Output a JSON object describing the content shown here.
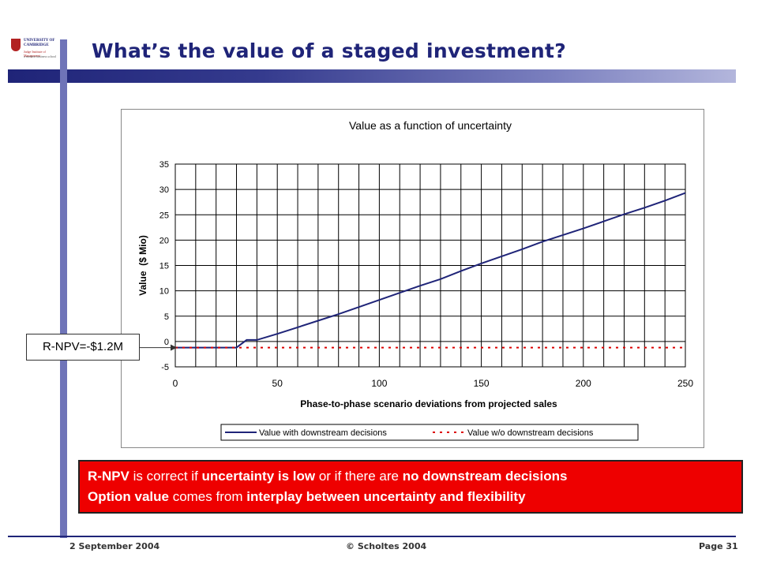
{
  "header": {
    "title": "What’s the value of a staged investment?",
    "logo": {
      "line1": "UNIVERSITY OF",
      "line2": "CAMBRIDGE",
      "line3": "Judge Institute of Management",
      "line4": "a modern business school"
    }
  },
  "callout": {
    "text": "R-NPV=-$1.2M"
  },
  "redbox": {
    "line1": {
      "a": "R-NPV",
      "b": " is correct if ",
      "c": "uncertainty is low",
      "d": " or if there are ",
      "e": "no downstream decisions"
    },
    "line2": {
      "a": "Option value",
      "b": " comes from ",
      "c": "interplay between uncertainty and flexibility"
    }
  },
  "footer": {
    "date": "2 September 2004",
    "copyright": "© Scholtes 2004",
    "page": "Page 31"
  },
  "colors": {
    "accent": "#1f2478",
    "red": "#ee0000",
    "series_with": "#1f2478",
    "series_without": "#dd0000"
  },
  "chart_data": {
    "type": "line",
    "title": "Value as a function of uncertainty",
    "xlabel": "Phase-to-phase scenario deviations from projected sales",
    "ylabel": "Value  ($ Mio)",
    "xlim": [
      0,
      250
    ],
    "ylim": [
      -5,
      35
    ],
    "xticks": [
      0,
      50,
      100,
      150,
      200,
      250
    ],
    "yticks": [
      -5,
      0,
      5,
      10,
      15,
      20,
      25,
      30,
      35
    ],
    "x_gridlines_every": 10,
    "grid": true,
    "legend_position": "bottom",
    "series": [
      {
        "name": "Value with downstream decisions",
        "style": "solid",
        "x": [
          0,
          30,
          35,
          40,
          50,
          60,
          70,
          80,
          90,
          100,
          110,
          120,
          130,
          140,
          150,
          160,
          170,
          180,
          190,
          200,
          210,
          220,
          230,
          240,
          250
        ],
        "y": [
          -1.2,
          -1.2,
          0.3,
          0.3,
          1.5,
          2.8,
          4.1,
          5.4,
          6.8,
          8.2,
          9.6,
          11.0,
          12.3,
          13.9,
          15.4,
          16.8,
          18.2,
          19.7,
          21.0,
          22.3,
          23.7,
          25.1,
          26.4,
          27.8,
          29.3
        ]
      },
      {
        "name": "Value w/o downstream decisions",
        "style": "dashed",
        "x": [
          0,
          250
        ],
        "y": [
          -1.2,
          -1.2
        ]
      }
    ]
  }
}
